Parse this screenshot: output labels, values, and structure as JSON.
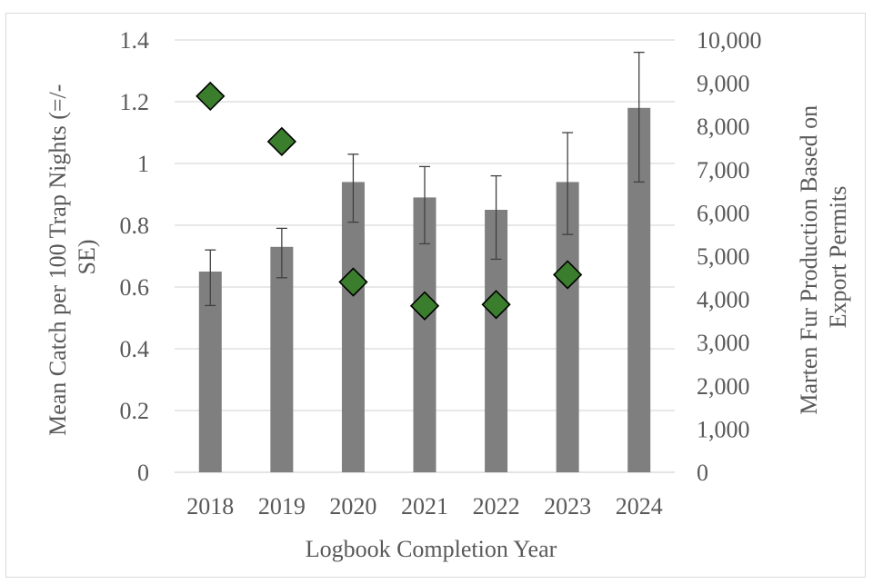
{
  "chart_data": {
    "type": "bar",
    "categories": [
      "2018",
      "2019",
      "2020",
      "2021",
      "2022",
      "2023",
      "2024"
    ],
    "series": [
      {
        "type": "bar",
        "axis": "left",
        "values": [
          0.65,
          0.73,
          0.94,
          0.89,
          0.85,
          0.94,
          1.18
        ],
        "error_low": [
          0.54,
          0.63,
          0.81,
          0.74,
          0.69,
          0.77,
          0.94
        ],
        "error_high": [
          0.72,
          0.79,
          1.03,
          0.99,
          0.96,
          1.1,
          1.36
        ],
        "color": "#7f7f7f"
      },
      {
        "type": "scatter",
        "axis": "right",
        "values": [
          8700,
          7650,
          4400,
          3850,
          3880,
          4570,
          null
        ],
        "marker": "diamond",
        "color": "#3a7d2c"
      }
    ],
    "xlabel": "Logbook Completion Year",
    "ylabel_left": [
      "Mean Catch per 100 Trap Nights (=/-",
      "SE)"
    ],
    "ylabel_right": [
      "Marten Fur Production Based on",
      "Export Permits"
    ],
    "ylim_left": [
      0,
      1.4
    ],
    "ylim_right": [
      0,
      10000
    ],
    "yticks_left": [
      "0",
      "0.2",
      "0.4",
      "0.6",
      "0.8",
      "1",
      "1.2",
      "1.4"
    ],
    "yticks_right": [
      "0",
      "1,000",
      "2,000",
      "3,000",
      "4,000",
      "5,000",
      "6,000",
      "7,000",
      "8,000",
      "9,000",
      "10,000"
    ],
    "grid": true,
    "legend": "none",
    "colors": {
      "bar": "#7f7f7f",
      "marker": "#3a7d2c",
      "grid": "#d9d9d9",
      "text": "#595959"
    }
  }
}
